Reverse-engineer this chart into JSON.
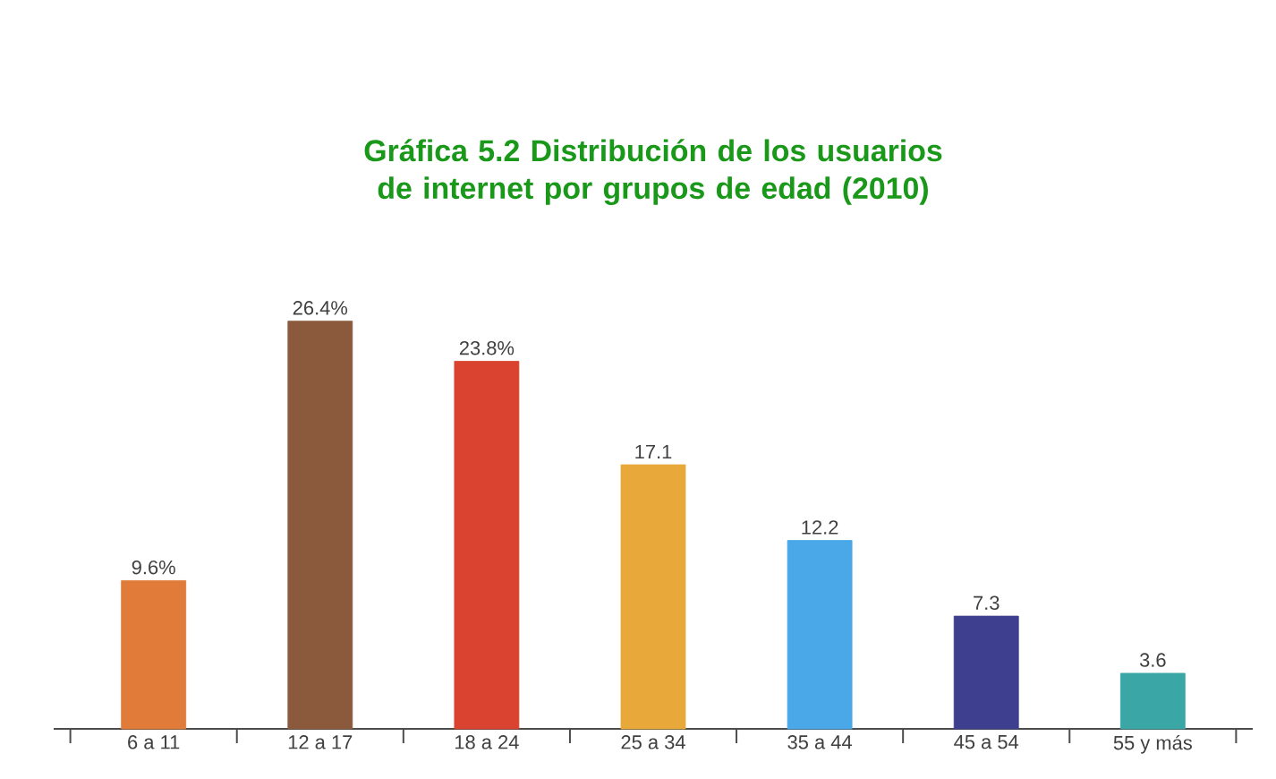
{
  "chart_data": {
    "type": "bar",
    "title": "Gráfica 5.2 Distribución de los usuarios de internet por grupos de edad (2010)",
    "categories": [
      "6 a 11",
      "12 a 17",
      "18 a 24",
      "25 a 34",
      "35 a 44",
      "45 a 54",
      "55 y más"
    ],
    "values": [
      9.6,
      26.4,
      23.8,
      17.1,
      12.2,
      7.3,
      3.6
    ],
    "value_labels": [
      "9.6%",
      "26.4%",
      "23.8%",
      "17.1",
      "12.2",
      "7.3",
      "3.6"
    ],
    "colors": [
      "#e07b39",
      "#8b5a3c",
      "#d9432f",
      "#e8a93a",
      "#4aa8e8",
      "#3f3f8f",
      "#3aa6a6"
    ]
  }
}
